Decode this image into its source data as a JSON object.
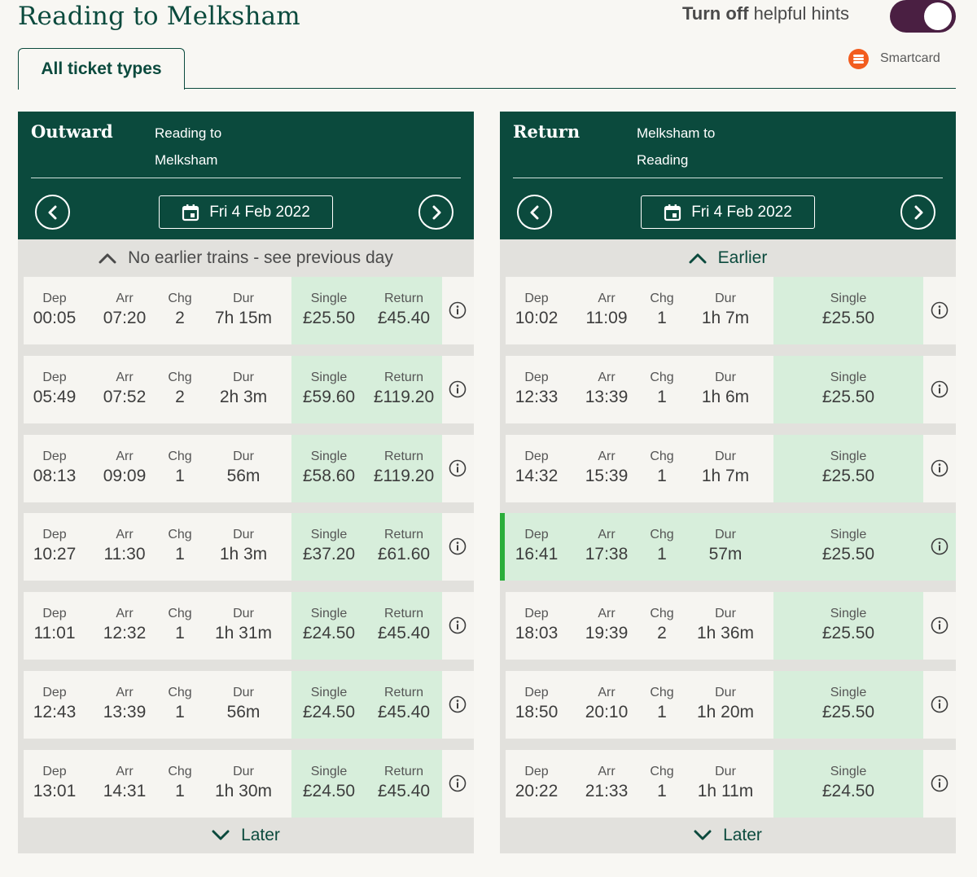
{
  "header": {
    "title": "Reading to Melksham",
    "hints_bold": "Turn off",
    "hints_rest": " helpful hints",
    "smartcard_label": "Smartcard",
    "tab_label": "All ticket types"
  },
  "colors": {
    "brand_green": "#0b4a3d",
    "fare_green": "#d7eedb",
    "selected_accent": "#2bae3b",
    "toggle": "#4a1f42",
    "smartcard_orange": "#f25c1e"
  },
  "labels": {
    "dep": "Dep",
    "arr": "Arr",
    "chg": "Chg",
    "dur": "Dur",
    "single": "Single",
    "return": "Return"
  },
  "outward": {
    "title": "Outward",
    "route_from": "Reading to",
    "route_to": "Melksham",
    "date": "Fri 4 Feb 2022",
    "earlier": "No earlier trains - see previous day",
    "later": "Later",
    "journeys": [
      {
        "dep": "00:05",
        "arr": "07:20",
        "chg": "2",
        "dur": "7h 15m",
        "single": "£25.50",
        "ret": "£45.40"
      },
      {
        "dep": "05:49",
        "arr": "07:52",
        "chg": "2",
        "dur": "2h 3m",
        "single": "£59.60",
        "ret": "£119.20"
      },
      {
        "dep": "08:13",
        "arr": "09:09",
        "chg": "1",
        "dur": "56m",
        "single": "£58.60",
        "ret": "£119.20"
      },
      {
        "dep": "10:27",
        "arr": "11:30",
        "chg": "1",
        "dur": "1h 3m",
        "single": "£37.20",
        "ret": "£61.60"
      },
      {
        "dep": "11:01",
        "arr": "12:32",
        "chg": "1",
        "dur": "1h 31m",
        "single": "£24.50",
        "ret": "£45.40"
      },
      {
        "dep": "12:43",
        "arr": "13:39",
        "chg": "1",
        "dur": "56m",
        "single": "£24.50",
        "ret": "£45.40"
      },
      {
        "dep": "13:01",
        "arr": "14:31",
        "chg": "1",
        "dur": "1h 30m",
        "single": "£24.50",
        "ret": "£45.40"
      }
    ]
  },
  "return": {
    "title": "Return",
    "route_from": "Melksham to",
    "route_to": "Reading",
    "date": "Fri 4 Feb 2022",
    "earlier": "Earlier",
    "later": "Later",
    "journeys": [
      {
        "dep": "10:02",
        "arr": "11:09",
        "chg": "1",
        "dur": "1h 7m",
        "single": "£25.50"
      },
      {
        "dep": "12:33",
        "arr": "13:39",
        "chg": "1",
        "dur": "1h 6m",
        "single": "£25.50"
      },
      {
        "dep": "14:32",
        "arr": "15:39",
        "chg": "1",
        "dur": "1h 7m",
        "single": "£25.50"
      },
      {
        "dep": "16:41",
        "arr": "17:38",
        "chg": "1",
        "dur": "57m",
        "single": "£25.50",
        "selected": true
      },
      {
        "dep": "18:03",
        "arr": "19:39",
        "chg": "2",
        "dur": "1h 36m",
        "single": "£25.50"
      },
      {
        "dep": "18:50",
        "arr": "20:10",
        "chg": "1",
        "dur": "1h 20m",
        "single": "£25.50"
      },
      {
        "dep": "20:22",
        "arr": "21:33",
        "chg": "1",
        "dur": "1h 11m",
        "single": "£24.50"
      }
    ]
  }
}
